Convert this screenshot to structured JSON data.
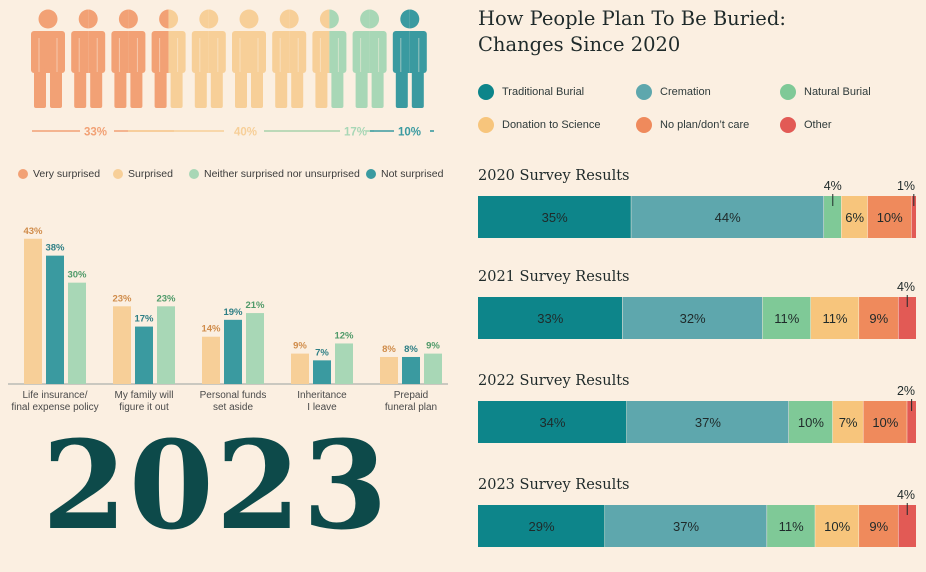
{
  "colors": {
    "very_surprised": "#f2a175",
    "surprised": "#f7cf98",
    "neither": "#a8d7b6",
    "not_surprised": "#3a9aa0",
    "traditional_burial": "#0d858a",
    "cremation": "#5ea7ad",
    "natural_burial": "#7fc997",
    "donation_to_science": "#f7c57c",
    "no_plan": "#ef8a5c",
    "other": "#e25a55",
    "year_text": "#0d4a4a"
  },
  "surprise_breakdown": {
    "people_colors": [
      "very_surprised",
      "very_surprised",
      "very_surprised",
      "split_vs_s",
      "surprised",
      "surprised",
      "surprised",
      "split_s_n",
      "neither",
      "not_surprised"
    ],
    "percent_labels": [
      {
        "label": "33%",
        "key": "very_surprised"
      },
      {
        "label": "40%",
        "key": "surprised"
      },
      {
        "label": "17%",
        "key": "neither"
      },
      {
        "label": "10%",
        "key": "not_surprised"
      }
    ],
    "values": [
      33,
      40,
      17,
      10
    ]
  },
  "legend_left": [
    {
      "label": "Very surprised",
      "key": "very_surprised"
    },
    {
      "label": "Surprised",
      "key": "surprised"
    },
    {
      "label": "Neither surprised nor unsurprised",
      "key": "neither"
    },
    {
      "label": "Not surprised",
      "key": "not_surprised"
    }
  ],
  "chart_data": [
    {
      "type": "bar",
      "categories": [
        "Life insurance/\nfinal expense policy",
        "My family will\nfigure it out",
        "Personal funds\nset aside",
        "Inheritance\nI leave",
        "Prepaid\nfuneral plan"
      ],
      "series": [
        {
          "values": [
            43,
            23,
            14,
            9,
            8
          ],
          "color_key": "surprised",
          "label_color": "#d08c4a"
        },
        {
          "values": [
            38,
            17,
            19,
            7,
            8
          ],
          "color_key": "not_surprised",
          "label_color": "#2e7f85"
        },
        {
          "values": [
            30,
            23,
            21,
            12,
            9
          ],
          "color_key": "neither",
          "label_color": "#4f9a69"
        }
      ],
      "ylim": [
        0,
        45
      ]
    },
    {
      "type": "bar",
      "stacked": true,
      "orientation": "horizontal",
      "title": "How People Plan To Be Buried:\nChanges Since 2020",
      "series_names": [
        "Traditional Burial",
        "Cremation",
        "Natural Burial",
        "Donation to Science",
        "No plan/don’t care",
        "Other"
      ],
      "series_keys": [
        "traditional_burial",
        "cremation",
        "natural_burial",
        "donation_to_science",
        "no_plan",
        "other"
      ],
      "rows": [
        {
          "title": "2020 Survey Results",
          "values": [
            35,
            44,
            4,
            6,
            10,
            1
          ],
          "labels": [
            "35%",
            "44%",
            "4%",
            "6%",
            "10%",
            "1%"
          ]
        },
        {
          "title": "2021 Survey Results",
          "values": [
            33,
            32,
            11,
            11,
            9,
            4
          ],
          "labels": [
            "33%",
            "32%",
            "11%",
            "11%",
            "9%",
            "4%"
          ]
        },
        {
          "title": "2022 Survey Results",
          "values": [
            34,
            37,
            10,
            7,
            10,
            2
          ],
          "labels": [
            "34%",
            "37%",
            "10%",
            "7%",
            "10%",
            "2%"
          ]
        },
        {
          "title": "2023 Survey Results",
          "values": [
            29,
            37,
            11,
            10,
            9,
            4
          ],
          "labels": [
            "29%",
            "37%",
            "11%",
            "10%",
            "9%",
            "4%"
          ]
        }
      ]
    }
  ],
  "year_label": "2023"
}
